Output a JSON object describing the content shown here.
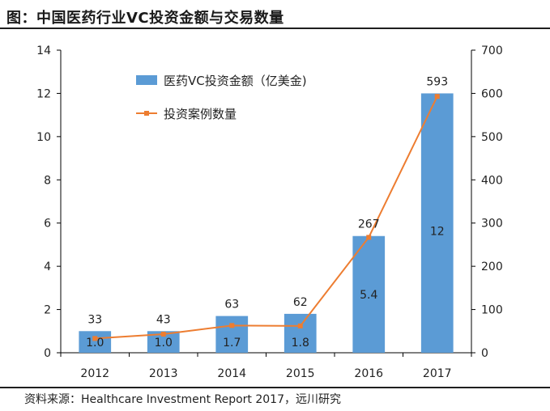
{
  "header": {
    "title": "图：中国医药行业VC投资金额与交易数量"
  },
  "footer": {
    "source": "资料来源：Healthcare Investment Report 2017，远川研究"
  },
  "colors": {
    "bar": "#5b9bd5",
    "line": "#ed7d31",
    "axis": "#000000"
  },
  "chart_data": {
    "type": "bar",
    "title": "",
    "categories": [
      "2012",
      "2013",
      "2014",
      "2015",
      "2016",
      "2017"
    ],
    "series": [
      {
        "name": "医药VC投资金额（亿美金)",
        "type": "bar",
        "axis": "left",
        "values": [
          1.0,
          1.0,
          1.7,
          1.8,
          5.4,
          12
        ],
        "labels": [
          "1.0",
          "1.0",
          "1.7",
          "1.8",
          "5.4",
          "12"
        ]
      },
      {
        "name": "投资案例数量",
        "type": "line",
        "axis": "right",
        "values": [
          33,
          43,
          63,
          62,
          267,
          593
        ],
        "labels": [
          "33",
          "43",
          "63",
          "62",
          "267",
          "593"
        ]
      }
    ],
    "y_left": {
      "min": 0,
      "max": 14,
      "ticks": [
        "0",
        "2",
        "4",
        "6",
        "8",
        "10",
        "12",
        "14"
      ]
    },
    "y_right": {
      "min": 0,
      "max": 700,
      "ticks": [
        "0",
        "100",
        "200",
        "300",
        "400",
        "500",
        "600",
        "700"
      ]
    },
    "legend_position": "top-left",
    "grid": false
  }
}
